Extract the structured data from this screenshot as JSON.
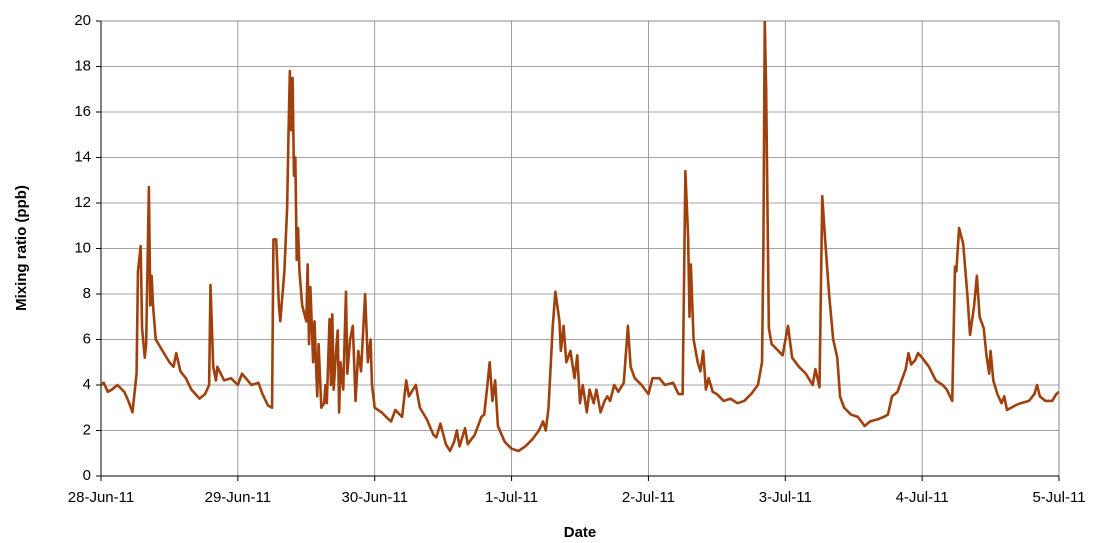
{
  "chart_data": {
    "type": "line",
    "xlabel": "Date",
    "ylabel": "Mixing ratio (ppb)",
    "color": "#a0410d",
    "grid": true,
    "xlim": [
      0,
      7
    ],
    "xticks": [
      {
        "value": 0,
        "label": "28-Jun-11"
      },
      {
        "value": 1,
        "label": "29-Jun-11"
      },
      {
        "value": 2,
        "label": "30-Jun-11"
      },
      {
        "value": 3,
        "label": "1-Jul-11"
      },
      {
        "value": 4,
        "label": "2-Jul-11"
      },
      {
        "value": 5,
        "label": "3-Jul-11"
      },
      {
        "value": 6,
        "label": "4-Jul-11"
      },
      {
        "value": 7,
        "label": "5-Jul-11"
      }
    ],
    "ylim": [
      0,
      20
    ],
    "yticks": [
      0,
      2,
      4,
      6,
      8,
      10,
      12,
      14,
      16,
      18,
      20
    ],
    "x": [
      0,
      0.02,
      0.05,
      0.08,
      0.12,
      0.17,
      0.2,
      0.23,
      0.26,
      0.27,
      0.29,
      0.3,
      0.32,
      0.33,
      0.35,
      0.36,
      0.37,
      0.38,
      0.4,
      0.45,
      0.5,
      0.53,
      0.55,
      0.58,
      0.62,
      0.66,
      0.72,
      0.76,
      0.79,
      0.8,
      0.82,
      0.84,
      0.85,
      0.9,
      0.95,
      1.0,
      1.03,
      1.1,
      1.15,
      1.18,
      1.22,
      1.25,
      1.26,
      1.28,
      1.3,
      1.31,
      1.34,
      1.36,
      1.37,
      1.38,
      1.39,
      1.4,
      1.41,
      1.42,
      1.43,
      1.44,
      1.45,
      1.47,
      1.5,
      1.51,
      1.52,
      1.53,
      1.55,
      1.56,
      1.58,
      1.59,
      1.61,
      1.63,
      1.64,
      1.65,
      1.67,
      1.68,
      1.69,
      1.7,
      1.72,
      1.73,
      1.74,
      1.75,
      1.77,
      1.79,
      1.8,
      1.82,
      1.84,
      1.86,
      1.88,
      1.9,
      1.93,
      1.95,
      1.97,
      1.98,
      2.0,
      2.05,
      2.1,
      2.12,
      2.15,
      2.2,
      2.23,
      2.25,
      2.3,
      2.33,
      2.38,
      2.43,
      2.45,
      2.48,
      2.52,
      2.55,
      2.58,
      2.6,
      2.62,
      2.66,
      2.68,
      2.73,
      2.78,
      2.8,
      2.82,
      2.84,
      2.86,
      2.88,
      2.9,
      2.95,
      3.0,
      3.05,
      3.1,
      3.15,
      3.2,
      3.23,
      3.25,
      3.27,
      3.3,
      3.32,
      3.35,
      3.36,
      3.38,
      3.4,
      3.43,
      3.46,
      3.48,
      3.5,
      3.52,
      3.55,
      3.57,
      3.6,
      3.62,
      3.65,
      3.68,
      3.7,
      3.72,
      3.75,
      3.78,
      3.82,
      3.85,
      3.87,
      3.9,
      3.95,
      4.0,
      4.03,
      4.08,
      4.12,
      4.18,
      4.22,
      4.25,
      4.27,
      4.29,
      4.3,
      4.31,
      4.33,
      4.36,
      4.38,
      4.4,
      4.42,
      4.44,
      4.47,
      4.5,
      4.55,
      4.6,
      4.65,
      4.7,
      4.75,
      4.8,
      4.83,
      4.84,
      4.85,
      4.86,
      4.88,
      4.9,
      4.95,
      4.98,
      5.02,
      5.05,
      5.1,
      5.15,
      5.2,
      5.22,
      5.25,
      5.27,
      5.29,
      5.32,
      5.35,
      5.38,
      5.4,
      5.43,
      5.48,
      5.53,
      5.58,
      5.62,
      5.68,
      5.72,
      5.75,
      5.78,
      5.8,
      5.82,
      5.85,
      5.88,
      5.9,
      5.92,
      5.95,
      5.97,
      6.0,
      6.05,
      6.1,
      6.15,
      6.18,
      6.22,
      6.24,
      6.25,
      6.27,
      6.3,
      6.33,
      6.35,
      6.38,
      6.4,
      6.42,
      6.45,
      6.47,
      6.49,
      6.5,
      6.52,
      6.55,
      6.58,
      6.6,
      6.62,
      6.65,
      6.68,
      6.72,
      6.78,
      6.82,
      6.84,
      6.86,
      6.9,
      6.95,
      6.98,
      7.0
    ],
    "values": [
      4.0,
      4.1,
      3.7,
      3.8,
      4.0,
      3.7,
      3.3,
      2.8,
      4.5,
      9.0,
      10.1,
      6.5,
      5.2,
      5.8,
      12.7,
      7.5,
      8.8,
      7.5,
      6.0,
      5.5,
      5.0,
      4.8,
      5.4,
      4.6,
      4.3,
      3.8,
      3.4,
      3.6,
      4.0,
      8.4,
      4.8,
      4.2,
      4.8,
      4.2,
      4.3,
      4.0,
      4.5,
      4.0,
      4.1,
      3.6,
      3.1,
      3.0,
      10.4,
      10.4,
      7.5,
      6.8,
      9.0,
      11.8,
      15.0,
      17.8,
      15.2,
      17.5,
      13.2,
      14.0,
      9.5,
      10.9,
      9.0,
      7.5,
      6.8,
      9.3,
      5.8,
      8.3,
      5.0,
      6.8,
      3.5,
      5.8,
      3.0,
      3.2,
      4.0,
      3.2,
      6.9,
      4.0,
      7.1,
      3.8,
      5.7,
      6.4,
      2.8,
      5.0,
      3.8,
      8.1,
      4.5,
      6.0,
      6.6,
      3.3,
      5.5,
      4.6,
      8.0,
      5.0,
      6.0,
      4.0,
      3.0,
      2.8,
      2.5,
      2.4,
      2.9,
      2.6,
      4.2,
      3.5,
      4.0,
      3.0,
      2.5,
      1.8,
      1.7,
      2.3,
      1.4,
      1.1,
      1.5,
      2.0,
      1.3,
      2.1,
      1.4,
      1.8,
      2.6,
      2.7,
      3.8,
      5.0,
      3.3,
      4.2,
      2.2,
      1.5,
      1.2,
      1.1,
      1.3,
      1.6,
      2.0,
      2.4,
      2.0,
      3.0,
      6.5,
      8.1,
      6.8,
      5.5,
      6.6,
      5.0,
      5.5,
      4.3,
      5.3,
      3.2,
      4.0,
      2.8,
      3.8,
      3.2,
      3.8,
      2.8,
      3.3,
      3.5,
      3.3,
      4.0,
      3.7,
      4.1,
      6.6,
      4.8,
      4.3,
      4.0,
      3.6,
      4.3,
      4.3,
      4.0,
      4.1,
      3.6,
      3.6,
      13.4,
      10.5,
      7.0,
      9.3,
      6.0,
      5.0,
      4.6,
      5.5,
      3.8,
      4.3,
      3.7,
      3.6,
      3.3,
      3.4,
      3.2,
      3.3,
      3.6,
      4.0,
      5.0,
      10.0,
      20,
      17,
      6.5,
      5.8,
      5.5,
      5.3,
      6.6,
      5.2,
      4.8,
      4.5,
      4.0,
      4.7,
      3.9,
      12.3,
      10.5,
      8.0,
      6.0,
      5.2,
      3.5,
      3.0,
      2.7,
      2.6,
      2.2,
      2.4,
      2.5,
      2.6,
      2.7,
      3.5,
      3.6,
      3.7,
      4.2,
      4.7,
      5.4,
      4.9,
      5.1,
      5.4,
      5.2,
      4.8,
      4.2,
      4.0,
      3.8,
      3.3,
      9.2,
      9.0,
      10.9,
      10.2,
      8.0,
      6.2,
      7.5,
      8.8,
      7.0,
      6.5,
      5.3,
      4.5,
      5.5,
      4.2,
      3.6,
      3.2,
      3.5,
      2.9,
      3.0,
      3.1,
      3.2,
      3.3,
      3.6,
      4.0,
      3.5,
      3.3,
      3.3,
      3.6,
      3.7
    ]
  }
}
